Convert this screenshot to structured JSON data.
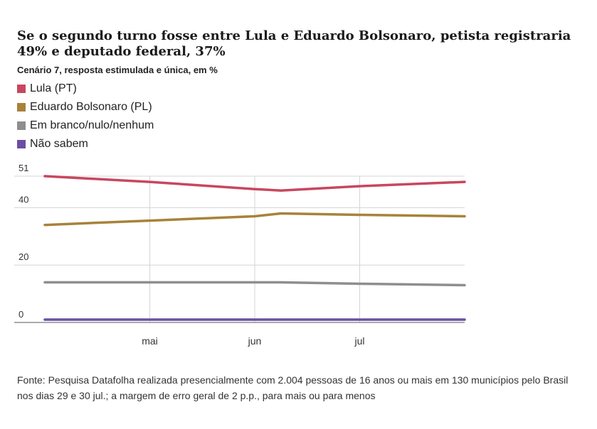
{
  "header": {
    "title": "Se o segundo turno fosse entre Lula e Eduardo Bolsonaro, petista registraria 49% e deputado federal, 37%",
    "subtitle": "Cenário 7, resposta estimulada e única, em %"
  },
  "footer": {
    "source": "Fonte: Pesquisa Datafolha realizada presencialmente com 2.004 pessoas de 16 anos ou mais em 130 municípios pelo Brasil nos dias 29 e 30 jul.; a margem de erro geral de 2 p.p., para mais ou para menos"
  },
  "chart_data": {
    "type": "line",
    "title": "Se o segundo turno fosse entre Lula e Eduardo Bolsonaro, petista registraria 49% e deputado federal, 37%",
    "subtitle": "Cenário 7, resposta estimulada e única, em %",
    "x_tick_labels": [
      "mai",
      "jun",
      "jul"
    ],
    "y_ticks": [
      0,
      20,
      40,
      51
    ],
    "ylim": [
      0,
      51
    ],
    "grid": true,
    "legend_position": "top-left",
    "series": [
      {
        "name": "Lula (PT)",
        "color": "#c8475f",
        "x": [
          0,
          1,
          2,
          2.25,
          3,
          4
        ],
        "values": [
          51,
          49,
          46.5,
          46,
          47.5,
          49
        ]
      },
      {
        "name": "Eduardo Bolsonaro (PL)",
        "color": "#a8823a",
        "x": [
          0,
          1,
          2,
          2.25,
          3,
          4
        ],
        "values": [
          34,
          35.5,
          37,
          38,
          37.5,
          37
        ]
      },
      {
        "name": "Em branco/nulo/nenhum",
        "color": "#8e8e8e",
        "x": [
          0,
          1,
          2,
          2.25,
          3,
          4
        ],
        "values": [
          14,
          14,
          14,
          14,
          13.5,
          13
        ]
      },
      {
        "name": "Não sabem",
        "color": "#6b4fa3",
        "x": [
          0,
          1,
          2,
          2.25,
          3,
          4
        ],
        "values": [
          1,
          1,
          1,
          1,
          1,
          1
        ]
      }
    ],
    "x_tick_positions": [
      1,
      2,
      3
    ],
    "xlim": [
      0,
      4
    ]
  }
}
